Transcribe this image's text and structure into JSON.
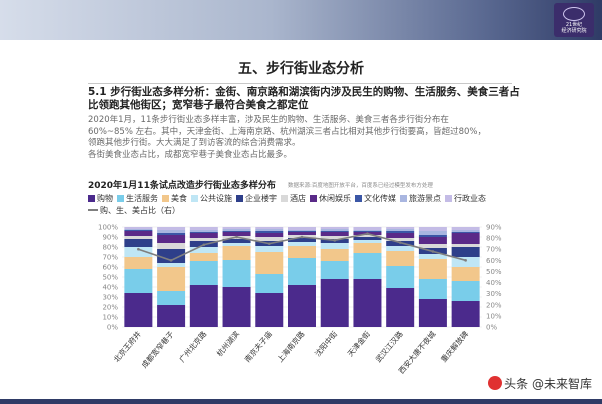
{
  "header": {
    "logo_text_1": "21世纪",
    "logo_text_2": "经济研究院"
  },
  "page": {
    "title": "五、步行街业态分析",
    "heading": "5.1 步行街业态多样分析：金街、南京路和湖滨街内涉及民生的购物、生活服务、美食三者占比领跑其他街区；宽窄巷子最符合美食之都定位",
    "paragraph": [
      "2020年1月，11条步行街业态多样丰富，涉及民生的购物、生活服务、美食三者各步行街分布在",
      "60%~85% 左右。其中，天津金街、上海南京路、杭州湖滨三者占比相对其他步行街要高，皆超过80%，",
      "领跑其他步行街。大大满足了到访客流的综合消费需求。",
      "各街美食业态占比，成都宽窄巷子美食业态占比最多。"
    ]
  },
  "watermark": {
    "text": "头条 @未来智库"
  },
  "chart_data": {
    "type": "bar",
    "title": "2020年1月11条试点改造步行街业态多样分布",
    "source": "数据来源:百度地图开放平台，百度系已经过模型发布方处理",
    "categories": [
      "北京王府井",
      "成都宽窄巷子",
      "广州北京路",
      "杭州湖滨",
      "南京夫子庙",
      "上海南京路",
      "沈阳中街",
      "天津金街",
      "武汉江汉路",
      "西安大唐不夜城",
      "重庆解放碑"
    ],
    "series": [
      {
        "name": "购物",
        "color": "#4b2a8c",
        "values": [
          34,
          22,
          42,
          40,
          34,
          42,
          48,
          48,
          39,
          28,
          26
        ]
      },
      {
        "name": "生活服务",
        "color": "#79cdea",
        "values": [
          24,
          14,
          24,
          27,
          19,
          27,
          18,
          26,
          22,
          20,
          20
        ]
      },
      {
        "name": "美食",
        "color": "#f2c78b",
        "values": [
          12,
          24,
          8,
          14,
          22,
          12,
          12,
          10,
          15,
          20,
          14
        ]
      },
      {
        "name": "公共设施",
        "color": "#bfe6f5",
        "values": [
          10,
          4,
          6,
          3,
          6,
          4,
          6,
          3,
          5,
          5,
          10
        ]
      },
      {
        "name": "企业楼宇",
        "color": "#2e3f8a",
        "values": [
          8,
          14,
          6,
          4,
          5,
          4,
          4,
          3,
          5,
          6,
          10
        ]
      },
      {
        "name": "酒店",
        "color": "#d9d9d9",
        "values": [
          3,
          6,
          3,
          3,
          4,
          3,
          3,
          2,
          3,
          4,
          3
        ]
      },
      {
        "name": "休闲娱乐",
        "color": "#5a2a88",
        "values": [
          5,
          8,
          5,
          4,
          4,
          3,
          4,
          3,
          5,
          7,
          11
        ]
      },
      {
        "name": "文化传媒",
        "color": "#3b57a6",
        "values": [
          1,
          2,
          1,
          1,
          2,
          1,
          1,
          1,
          2,
          2,
          1
        ]
      },
      {
        "name": "旅游景点",
        "color": "#a9b6e0",
        "values": [
          1,
          3,
          2,
          2,
          2,
          1,
          2,
          1,
          2,
          4,
          2
        ]
      },
      {
        "name": "行政业态",
        "color": "#c4bce6",
        "values": [
          2,
          3,
          3,
          2,
          2,
          3,
          2,
          3,
          2,
          4,
          3
        ]
      }
    ],
    "line_series": {
      "name": "购、生、美占比（右）",
      "color": "#7f7f7f",
      "values": [
        70,
        60,
        74,
        81,
        75,
        81,
        78,
        84,
        76,
        68,
        60
      ]
    },
    "ylim": [
      0,
      100
    ],
    "yticks": [
      "0%",
      "10%",
      "20%",
      "30%",
      "40%",
      "50%",
      "60%",
      "70%",
      "80%",
      "90%",
      "100%"
    ],
    "y2lim": [
      0,
      90
    ],
    "y2ticks": [
      "0%",
      "10%",
      "20%",
      "30%",
      "40%",
      "50%",
      "60%",
      "70%",
      "80%",
      "90%"
    ],
    "grid": true,
    "legend": "top"
  }
}
